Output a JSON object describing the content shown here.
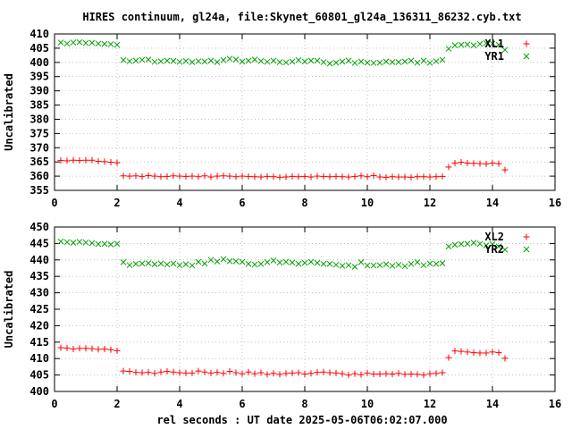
{
  "title": "HIRES continuum, gl24a, file:Skynet_60801_gl24a_136311_86232.cyb.txt",
  "xlabel": "rel seconds : UT date 2025-05-06T06:02:07.000",
  "colors": {
    "red": "#ff0000",
    "green": "#00a000",
    "axis": "#000000"
  },
  "chart_data": [
    {
      "type": "scatter",
      "title": "",
      "xlabel": "",
      "ylabel": "Uncalibrated",
      "xlim": [
        0,
        16
      ],
      "ylim": [
        355,
        410
      ],
      "xticks": [
        0,
        2,
        4,
        6,
        8,
        10,
        12,
        14,
        16
      ],
      "yticks": [
        355,
        360,
        365,
        370,
        375,
        380,
        385,
        390,
        395,
        400,
        405,
        410
      ],
      "legend": "top-right",
      "series": [
        {
          "name": "XL1",
          "marker": "plus",
          "color": "#ff0000",
          "x": [
            0.2,
            0.4,
            0.6,
            0.8,
            1.0,
            1.2,
            1.4,
            1.6,
            1.8,
            2.0,
            2.2,
            2.4,
            2.6,
            2.8,
            3.0,
            3.2,
            3.4,
            3.6,
            3.8,
            4.0,
            4.2,
            4.4,
            4.6,
            4.8,
            5.0,
            5.2,
            5.4,
            5.6,
            5.8,
            6.0,
            6.2,
            6.4,
            6.6,
            6.8,
            7.0,
            7.2,
            7.4,
            7.6,
            7.8,
            8.0,
            8.2,
            8.4,
            8.6,
            8.8,
            9.0,
            9.2,
            9.4,
            9.6,
            9.8,
            10.0,
            10.2,
            10.4,
            10.6,
            10.8,
            11.0,
            11.2,
            11.4,
            11.6,
            11.8,
            12.0,
            12.2,
            12.4,
            12.6,
            12.8,
            13.0,
            13.2,
            13.4,
            13.6,
            13.8,
            14.0,
            14.2,
            14.4
          ],
          "y": [
            365.5,
            365.4,
            365.6,
            365.5,
            365.6,
            365.6,
            365.2,
            365.1,
            364.9,
            364.7,
            360.1,
            360.0,
            360.1,
            359.9,
            360.2,
            360.0,
            359.8,
            359.9,
            360.1,
            360.0,
            359.9,
            360.0,
            359.8,
            360.1,
            359.7,
            360.0,
            360.1,
            360.0,
            359.8,
            360.0,
            359.9,
            359.8,
            359.7,
            359.9,
            359.8,
            359.6,
            359.7,
            359.9,
            359.8,
            359.9,
            359.7,
            360.0,
            359.9,
            359.8,
            359.9,
            359.8,
            359.7,
            359.9,
            360.1,
            359.8,
            360.2,
            359.7,
            359.6,
            359.8,
            359.7,
            359.7,
            359.6,
            359.8,
            359.8,
            359.7,
            359.8,
            359.9,
            363.2,
            364.6,
            364.9,
            364.6,
            364.5,
            364.4,
            364.3,
            364.6,
            364.4,
            362.2
          ]
        },
        {
          "name": "YR1",
          "marker": "cross",
          "color": "#00a000",
          "x": [
            0.2,
            0.4,
            0.6,
            0.8,
            1.0,
            1.2,
            1.4,
            1.6,
            1.8,
            2.0,
            2.2,
            2.4,
            2.6,
            2.8,
            3.0,
            3.2,
            3.4,
            3.6,
            3.8,
            4.0,
            4.2,
            4.4,
            4.6,
            4.8,
            5.0,
            5.2,
            5.4,
            5.6,
            5.8,
            6.0,
            6.2,
            6.4,
            6.6,
            6.8,
            7.0,
            7.2,
            7.4,
            7.6,
            7.8,
            8.0,
            8.2,
            8.4,
            8.6,
            8.8,
            9.0,
            9.2,
            9.4,
            9.6,
            9.8,
            10.0,
            10.2,
            10.4,
            10.6,
            10.8,
            11.0,
            11.2,
            11.4,
            11.6,
            11.8,
            12.0,
            12.2,
            12.4,
            12.6,
            12.8,
            13.0,
            13.2,
            13.4,
            13.6,
            13.8,
            14.0,
            14.2,
            14.4
          ],
          "y": [
            407.0,
            406.6,
            407.0,
            407.1,
            406.8,
            406.9,
            406.6,
            406.5,
            406.4,
            406.2,
            400.8,
            400.4,
            400.6,
            400.9,
            401.0,
            400.2,
            400.4,
            400.6,
            400.5,
            400.2,
            400.5,
            400.1,
            400.4,
            400.3,
            400.6,
            400.1,
            400.8,
            401.3,
            401.0,
            400.3,
            400.6,
            401.0,
            400.5,
            400.2,
            400.6,
            400.1,
            400.0,
            400.3,
            400.8,
            400.3,
            400.6,
            400.6,
            400.1,
            399.6,
            399.9,
            400.3,
            400.6,
            399.8,
            400.3,
            399.9,
            399.8,
            399.9,
            400.3,
            400.1,
            400.1,
            400.3,
            400.6,
            399.9,
            400.6,
            399.8,
            400.4,
            400.9,
            404.8,
            406.0,
            406.2,
            406.3,
            406.0,
            406.5,
            406.8,
            406.6,
            406.2,
            404.4
          ]
        }
      ]
    },
    {
      "type": "scatter",
      "title": "",
      "xlabel": "rel seconds : UT date 2025-05-06T06:02:07.000",
      "ylabel": "Uncalibrated",
      "xlim": [
        0,
        16
      ],
      "ylim": [
        400,
        450
      ],
      "xticks": [
        0,
        2,
        4,
        6,
        8,
        10,
        12,
        14,
        16
      ],
      "yticks": [
        400,
        405,
        410,
        415,
        420,
        425,
        430,
        435,
        440,
        445,
        450
      ],
      "legend": "top-right",
      "series": [
        {
          "name": "XL2",
          "marker": "plus",
          "color": "#ff0000",
          "x": [
            0.2,
            0.4,
            0.6,
            0.8,
            1.0,
            1.2,
            1.4,
            1.6,
            1.8,
            2.0,
            2.2,
            2.4,
            2.6,
            2.8,
            3.0,
            3.2,
            3.4,
            3.6,
            3.8,
            4.0,
            4.2,
            4.4,
            4.6,
            4.8,
            5.0,
            5.2,
            5.4,
            5.6,
            5.8,
            6.0,
            6.2,
            6.4,
            6.6,
            6.8,
            7.0,
            7.2,
            7.4,
            7.6,
            7.8,
            8.0,
            8.2,
            8.4,
            8.6,
            8.8,
            9.0,
            9.2,
            9.4,
            9.6,
            9.8,
            10.0,
            10.2,
            10.4,
            10.6,
            10.8,
            11.0,
            11.2,
            11.4,
            11.6,
            11.8,
            12.0,
            12.2,
            12.4,
            12.6,
            12.8,
            13.0,
            13.2,
            13.4,
            13.6,
            13.8,
            14.0,
            14.2,
            14.4
          ],
          "y": [
            413.3,
            413.2,
            412.9,
            413.1,
            413.1,
            413.0,
            412.8,
            412.9,
            412.7,
            412.4,
            406.2,
            406.1,
            405.8,
            405.7,
            405.8,
            405.5,
            405.9,
            406.1,
            405.9,
            405.7,
            405.6,
            405.6,
            406.2,
            405.9,
            405.6,
            405.8,
            405.5,
            406.1,
            405.7,
            405.4,
            405.9,
            405.4,
            405.7,
            405.2,
            405.5,
            405.2,
            405.5,
            405.6,
            405.7,
            405.3,
            405.5,
            405.8,
            405.9,
            405.7,
            405.6,
            405.4,
            405.0,
            405.4,
            405.1,
            405.6,
            405.3,
            405.3,
            405.4,
            405.3,
            405.5,
            405.2,
            405.3,
            405.2,
            405.0,
            405.4,
            405.5,
            405.7,
            410.3,
            412.3,
            412.2,
            412.0,
            411.8,
            411.7,
            411.7,
            412.0,
            411.8,
            410.1
          ]
        },
        {
          "name": "YR2",
          "marker": "cross",
          "color": "#00a000",
          "x": [
            0.2,
            0.4,
            0.6,
            0.8,
            1.0,
            1.2,
            1.4,
            1.6,
            1.8,
            2.0,
            2.2,
            2.4,
            2.6,
            2.8,
            3.0,
            3.2,
            3.4,
            3.6,
            3.8,
            4.0,
            4.2,
            4.4,
            4.6,
            4.8,
            5.0,
            5.2,
            5.4,
            5.6,
            5.8,
            6.0,
            6.2,
            6.4,
            6.6,
            6.8,
            7.0,
            7.2,
            7.4,
            7.6,
            7.8,
            8.0,
            8.2,
            8.4,
            8.6,
            8.8,
            9.0,
            9.2,
            9.4,
            9.6,
            9.8,
            10.0,
            10.2,
            10.4,
            10.6,
            10.8,
            11.0,
            11.2,
            11.4,
            11.6,
            11.8,
            12.0,
            12.2,
            12.4,
            12.6,
            12.8,
            13.0,
            13.2,
            13.4,
            13.6,
            13.8,
            14.0,
            14.2,
            14.4
          ],
          "y": [
            445.6,
            445.4,
            445.2,
            445.5,
            445.3,
            445.1,
            444.8,
            444.9,
            444.7,
            444.9,
            439.3,
            438.4,
            438.8,
            438.9,
            439.0,
            438.7,
            438.9,
            438.6,
            438.9,
            438.4,
            438.7,
            438.3,
            439.4,
            438.9,
            440.0,
            439.5,
            440.2,
            439.6,
            439.6,
            439.4,
            438.8,
            438.6,
            438.8,
            439.3,
            439.8,
            439.2,
            439.4,
            439.2,
            438.8,
            439.1,
            439.4,
            439.1,
            438.8,
            438.8,
            438.5,
            438.2,
            438.4,
            437.9,
            439.3,
            438.3,
            438.3,
            438.4,
            438.7,
            438.2,
            438.5,
            438.1,
            438.8,
            439.3,
            438.4,
            438.9,
            438.8,
            439.0,
            444.1,
            444.6,
            444.8,
            444.9,
            445.2,
            444.9,
            444.4,
            444.8,
            444.1,
            443.1
          ]
        }
      ]
    }
  ]
}
